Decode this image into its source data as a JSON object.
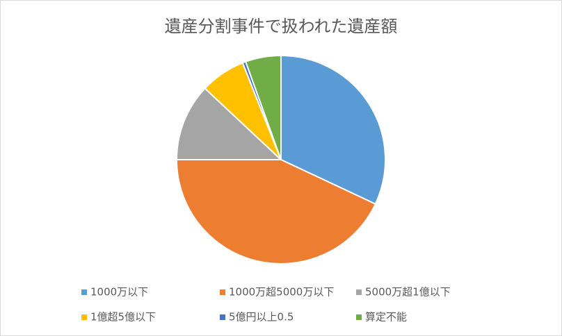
{
  "chart_data": {
    "type": "pie",
    "title": "遺産分割事件で扱われた遺産額",
    "categories": [
      "1000万以下",
      "1000万超5000万以下",
      "5000万超1億以下",
      "1億超5億以下",
      "5億円以上0.5",
      "算定不能"
    ],
    "values": [
      32,
      43,
      12,
      7,
      0.5,
      5.5
    ],
    "colors": [
      "#5b9bd5",
      "#ed7d31",
      "#a5a5a5",
      "#ffc000",
      "#4472c4",
      "#70ad47"
    ],
    "legend": "bottom"
  }
}
